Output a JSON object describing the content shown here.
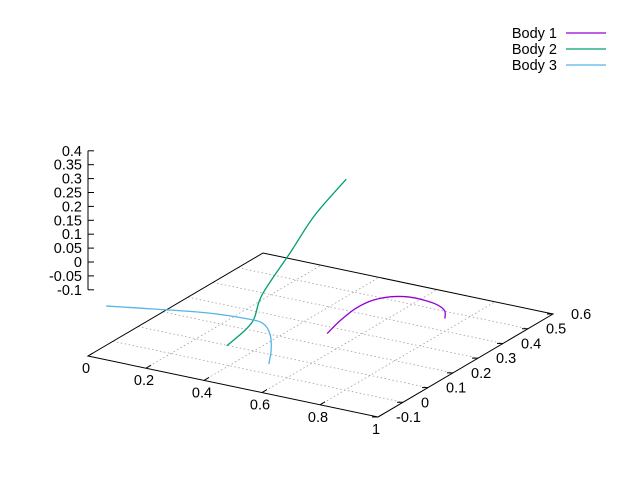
{
  "chart_data": {
    "type": "line",
    "subtype": "3d-parametric",
    "title": "",
    "xlabel": "",
    "ylabel": "",
    "zlabel": "",
    "xlim": [
      0,
      1
    ],
    "ylim": [
      -0.1,
      0.6
    ],
    "zlim": [
      -0.1,
      0.4
    ],
    "x_ticks": [
      {
        "v": 0,
        "label": "0"
      },
      {
        "v": 0.2,
        "label": "0.2"
      },
      {
        "v": 0.4,
        "label": "0.4"
      },
      {
        "v": 0.6,
        "label": "0.6"
      },
      {
        "v": 0.8,
        "label": "0.8"
      },
      {
        "v": 1,
        "label": "1"
      }
    ],
    "y_ticks": [
      {
        "v": -0.1,
        "label": "-0.1"
      },
      {
        "v": 0,
        "label": "0"
      },
      {
        "v": 0.1,
        "label": "0.1"
      },
      {
        "v": 0.2,
        "label": "0.2"
      },
      {
        "v": 0.3,
        "label": "0.3"
      },
      {
        "v": 0.4,
        "label": "0.4"
      },
      {
        "v": 0.5,
        "label": "0.5"
      },
      {
        "v": 0.6,
        "label": "0.6"
      }
    ],
    "z_ticks": [
      {
        "v": 0.4,
        "label": "0.4"
      },
      {
        "v": 0.35,
        "label": "0.35"
      },
      {
        "v": 0.3,
        "label": "0.3"
      },
      {
        "v": 0.25,
        "label": "0.25"
      },
      {
        "v": 0.2,
        "label": "0.2"
      },
      {
        "v": 0.15,
        "label": "0.15"
      },
      {
        "v": 0.1,
        "label": "0.1"
      },
      {
        "v": 0.05,
        "label": "0.05"
      },
      {
        "v": 0,
        "label": "0"
      },
      {
        "v": -0.05,
        "label": "-0.05"
      },
      {
        "v": -0.1,
        "label": "-0.1"
      }
    ],
    "grid": true,
    "legend_position": "top-right",
    "series": [
      {
        "name": "Body 1",
        "color": "#9400d3",
        "points": [
          [
            0.743,
            0.466,
            0
          ],
          [
            0.76,
            0.445,
            0.041
          ],
          [
            0.768,
            0.407,
            0.084
          ],
          [
            0.769,
            0.355,
            0.128
          ],
          [
            0.766,
            0.294,
            0.172
          ],
          [
            0.76,
            0.228,
            0.206
          ],
          [
            0.755,
            0.162,
            0.227
          ],
          [
            0.752,
            0.097,
            0.231
          ],
          [
            0.751,
            0.037,
            0.219
          ],
          [
            0.75,
            -0.012,
            0.2
          ]
        ]
      },
      {
        "name": "Body 2",
        "color": "#009e73",
        "points": [
          [
            0.392,
            0.002,
            0.07
          ],
          [
            0.378,
            0.117,
            0.088
          ],
          [
            0.358,
            0.181,
            0.15
          ],
          [
            0.34,
            0.317,
            0.229
          ],
          [
            0.325,
            0.43,
            0.297
          ],
          [
            0.316,
            0.565,
            0.352
          ]
        ]
      },
      {
        "name": "Body 3",
        "color": "#56b4e9",
        "points": [
          [
            0.492,
            0.053,
            0
          ],
          [
            0.486,
            0.069,
            0.04
          ],
          [
            0.466,
            0.088,
            0.08
          ],
          [
            0.433,
            0.099,
            0.106
          ],
          [
            0.394,
            0.084,
            0.122
          ],
          [
            0.28,
            0.052,
            0.136
          ],
          [
            0.13,
            0.009,
            0.14
          ],
          [
            0.0,
            -0.025,
            0.14
          ]
        ]
      }
    ]
  }
}
